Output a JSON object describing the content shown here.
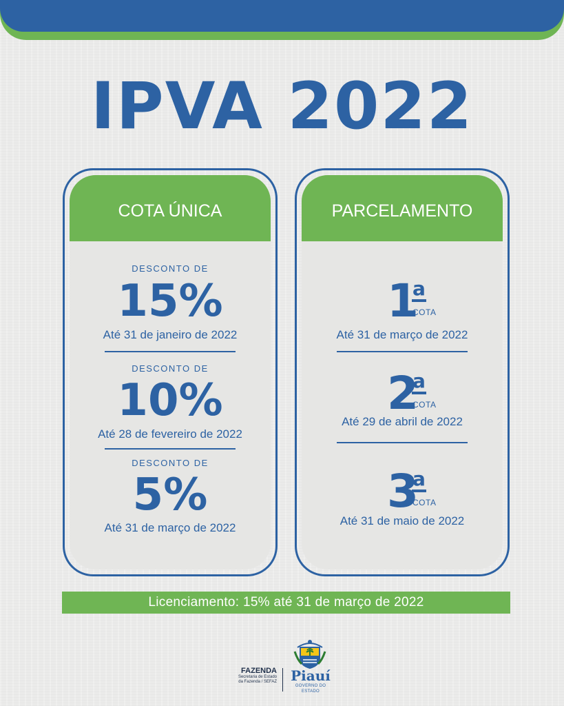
{
  "title": "IPVA 2022",
  "cota_unica": {
    "header": "COTA ÚNICA",
    "discounts": [
      {
        "label": "DESCONTO DE",
        "value": "15%",
        "deadline": "Até 31 de janeiro de 2022"
      },
      {
        "label": "DESCONTO DE",
        "value": "10%",
        "deadline": "Até 28 de fevereiro de 2022"
      },
      {
        "label": "DESCONTO DE",
        "value": "5%",
        "deadline": "Até 31 de março de 2022"
      }
    ]
  },
  "parcelamento": {
    "header": "PARCELAMENTO",
    "installments": [
      {
        "number": "1",
        "ordinal_suffix": "a",
        "label": "COTA",
        "deadline": "Até 31 de março de 2022"
      },
      {
        "number": "2",
        "ordinal_suffix": "a",
        "label": "COTA",
        "deadline": "Até 29 de abril de 2022"
      },
      {
        "number": "3",
        "ordinal_suffix": "a",
        "label": "COTA",
        "deadline": "Até 31 de maio de 2022"
      }
    ]
  },
  "footer_note": "Licenciamento: 15% até 31 de março de 2022",
  "logos": {
    "fazenda_title": "FAZENDA",
    "fazenda_subtitle_line1": "Secretaria de Estado",
    "fazenda_subtitle_line2": "da Fazenda / SEFAZ",
    "state_name": "Piauí",
    "state_subtitle": "GOVERNO DO ESTADO",
    "coat_icon": "coat-of-arms-icon"
  },
  "colors": {
    "primary_blue": "#2d62a3",
    "accent_green": "#6fb554",
    "background": "#ebebea",
    "panel_fill": "#e6e6e4"
  }
}
